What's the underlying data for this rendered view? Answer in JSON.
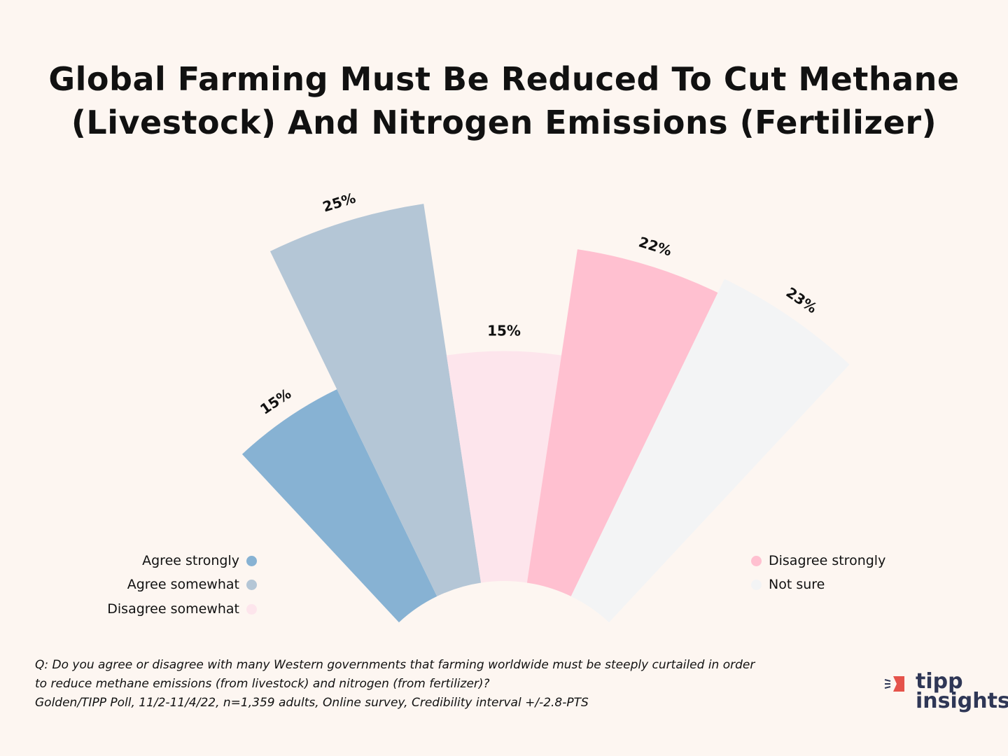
{
  "title": [
    "Global Farming Must Be Reduced To Cut Methane",
    "(Livestock) And Nitrogen Emissions (Fertilizer)"
  ],
  "chart_data": {
    "type": "polar-bar",
    "title": "Global Farming Must Be Reduced To Cut Methane (Livestock) And Nitrogen Emissions (Fertilizer)",
    "categories": [
      "Agree strongly",
      "Agree somewhat",
      "Disagree somewhat",
      "Disagree strongly",
      "Not sure"
    ],
    "values": [
      15,
      25,
      15,
      22,
      23
    ],
    "labels": [
      "15%",
      "25%",
      "15%",
      "22%",
      "23%"
    ],
    "colors": [
      "#87b2d3",
      "#b4c6d6",
      "#fde5ec",
      "#ffc0d0",
      "#f3f4f5"
    ],
    "legend": [
      "left",
      "right"
    ]
  },
  "legend": {
    "left": [
      {
        "label": "Agree strongly",
        "color": "#87b2d3"
      },
      {
        "label": "Agree somewhat",
        "color": "#b4c6d6"
      },
      {
        "label": "Disagree somewhat",
        "color": "#fde5ec"
      }
    ],
    "right": [
      {
        "label": "Disagree strongly",
        "color": "#ffc0d0"
      },
      {
        "label": "Not sure",
        "color": "#f3f4f5"
      }
    ]
  },
  "footnote": [
    "Q: Do you agree or disagree with many Western governments that farming worldwide must be steeply curtailed in order",
    "to reduce methane emissions (from livestock) and nitrogen (from fertilizer)?",
    "Golden/TIPP Poll, 11/2-11/4/22, n=1,359 adults, Online survey, Credibility interval +/-2.8-PTS"
  ],
  "logo": {
    "line1": "tipp",
    "line2": "insights",
    "accent": "#e5534b"
  }
}
